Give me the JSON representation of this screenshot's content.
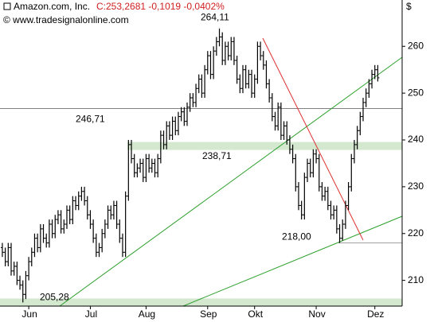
{
  "chart_data": {
    "type": "ohlc",
    "title": "Amazon.com, Inc.",
    "subtitle": "C:253,2681 -0,1019 -0,0402%",
    "source": "© www.tradesignalonline.com",
    "y_axis_label": "$",
    "color": "#000000",
    "xlim": [
      -0.8,
      136.3
    ],
    "xticks": [
      {
        "value": 9,
        "label": "Jun"
      },
      {
        "value": 30,
        "label": "Jul"
      },
      {
        "value": 49,
        "label": "Aug"
      },
      {
        "value": 70,
        "label": "Sep"
      },
      {
        "value": 86,
        "label": "Okt"
      },
      {
        "value": 107,
        "label": "Nov"
      },
      {
        "value": 127,
        "label": "Dez"
      }
    ],
    "ylim": [
      204.5,
      269.9
    ],
    "yticks": [
      210,
      220,
      230,
      240,
      250,
      260
    ],
    "levels": [
      {
        "value": 264.11,
        "label": "264,11",
        "style": "label",
        "color": "#000000"
      },
      {
        "value": 246.71,
        "label": "246,71",
        "style": "line",
        "color": "#808080"
      },
      {
        "value": 238.71,
        "label": "238,71",
        "style": "band",
        "color": "#d4e8d0"
      },
      {
        "value": 218.0,
        "label": "218,00",
        "style": "line",
        "color": "#a0a0a0"
      },
      {
        "value": 205.28,
        "label": "205,28",
        "style": "band",
        "color": "#d4e8d0"
      }
    ],
    "open": [
      217,
      216,
      214,
      217,
      212,
      213,
      210,
      209,
      207,
      211,
      214,
      216,
      219,
      217,
      221,
      219,
      218,
      222,
      220,
      223,
      224,
      221,
      222,
      225,
      223,
      227,
      226,
      228,
      229,
      227,
      224,
      222,
      219,
      216,
      217,
      220,
      222,
      225,
      224,
      226,
      222,
      219,
      216,
      228,
      239,
      236,
      233,
      234,
      235,
      232,
      236,
      234,
      235,
      233,
      236,
      241,
      239,
      243,
      241,
      244,
      242,
      245,
      246,
      244,
      247,
      249,
      248,
      251,
      253,
      250,
      255,
      258,
      254,
      259,
      261,
      262,
      257,
      260,
      258,
      261,
      257,
      253,
      251,
      255,
      252,
      254,
      250,
      253,
      260,
      258,
      256,
      252,
      249,
      245,
      243,
      247,
      241,
      243,
      240,
      238,
      236,
      230,
      226,
      224,
      232,
      235,
      233,
      237,
      236,
      230,
      228,
      229,
      226,
      224,
      225,
      221,
      219,
      222,
      226,
      230,
      236,
      239,
      242,
      245,
      248,
      250,
      252,
      254,
      255
    ],
    "high": [
      218,
      217,
      218,
      218,
      214,
      214,
      211,
      210,
      212,
      215,
      217,
      220,
      220,
      222,
      222,
      220,
      223,
      223,
      224,
      225,
      225,
      223,
      226,
      226,
      228,
      228,
      229,
      230,
      230,
      228,
      225,
      223,
      220,
      218,
      221,
      223,
      226,
      226,
      227,
      227,
      223,
      220,
      229,
      240,
      240,
      237,
      235,
      236,
      236,
      237,
      237,
      236,
      236,
      237,
      242,
      242,
      244,
      244,
      245,
      245,
      246,
      247,
      247,
      248,
      250,
      250,
      252,
      254,
      254,
      256,
      259,
      259,
      260,
      262,
      264.11,
      263,
      261,
      261,
      262,
      262,
      258,
      254,
      256,
      256,
      255,
      255,
      254,
      261,
      261,
      259,
      257,
      253,
      250,
      246,
      248,
      248,
      244,
      244,
      241,
      239,
      237,
      231,
      227,
      233,
      236,
      236,
      238,
      238,
      237,
      231,
      230,
      230,
      227,
      226,
      226,
      222,
      223,
      227,
      231,
      237,
      240,
      243,
      246,
      249,
      251,
      253,
      255,
      256,
      256
    ],
    "low": [
      215,
      213,
      213,
      211,
      211,
      209,
      208,
      205.28,
      206,
      210,
      213,
      215,
      216,
      216,
      218,
      217,
      217,
      219,
      219,
      222,
      220,
      220,
      221,
      222,
      222,
      225,
      225,
      227,
      226,
      223,
      221,
      218,
      215,
      215,
      216,
      219,
      221,
      223,
      223,
      221,
      218,
      215,
      215,
      227,
      235,
      232,
      232,
      233,
      231,
      231,
      233,
      233,
      232,
      232,
      235,
      238,
      238,
      240,
      240,
      241,
      241,
      244,
      243,
      243,
      246,
      247,
      247,
      250,
      249,
      249,
      254,
      253,
      253,
      258,
      260,
      256,
      256,
      257,
      257,
      256,
      252,
      250,
      250,
      251,
      251,
      249,
      249,
      252,
      257,
      255,
      251,
      248,
      244,
      242,
      242,
      240,
      240,
      239,
      237,
      235,
      229,
      225,
      223,
      223,
      231,
      232,
      232,
      235,
      229,
      227,
      227,
      225,
      223,
      223,
      220,
      218,
      218.5,
      221,
      225,
      229,
      235,
      238,
      241,
      244,
      247,
      249,
      251,
      253,
      252.5
    ],
    "close": [
      216,
      214,
      217,
      212,
      213,
      210,
      209,
      207,
      211,
      214,
      216,
      219,
      217,
      221,
      219,
      218,
      222,
      220,
      223,
      224,
      221,
      222,
      225,
      223,
      227,
      226,
      228,
      229,
      227,
      224,
      222,
      219,
      216,
      217,
      220,
      222,
      225,
      224,
      226,
      222,
      219,
      216,
      228,
      239,
      236,
      233,
      234,
      235,
      232,
      236,
      234,
      235,
      233,
      236,
      241,
      239,
      243,
      241,
      244,
      242,
      245,
      246,
      244,
      247,
      249,
      248,
      251,
      253,
      250,
      255,
      258,
      254,
      259,
      261,
      262,
      257,
      260,
      258,
      261,
      257,
      253,
      251,
      255,
      252,
      254,
      250,
      253,
      260,
      258,
      256,
      252,
      249,
      245,
      243,
      247,
      241,
      243,
      240,
      238,
      236,
      230,
      226,
      224,
      232,
      235,
      233,
      237,
      236,
      230,
      228,
      229,
      226,
      224,
      225,
      221,
      219,
      222,
      226,
      230,
      236,
      239,
      242,
      245,
      248,
      250,
      252,
      254,
      255,
      253.27
    ]
  }
}
